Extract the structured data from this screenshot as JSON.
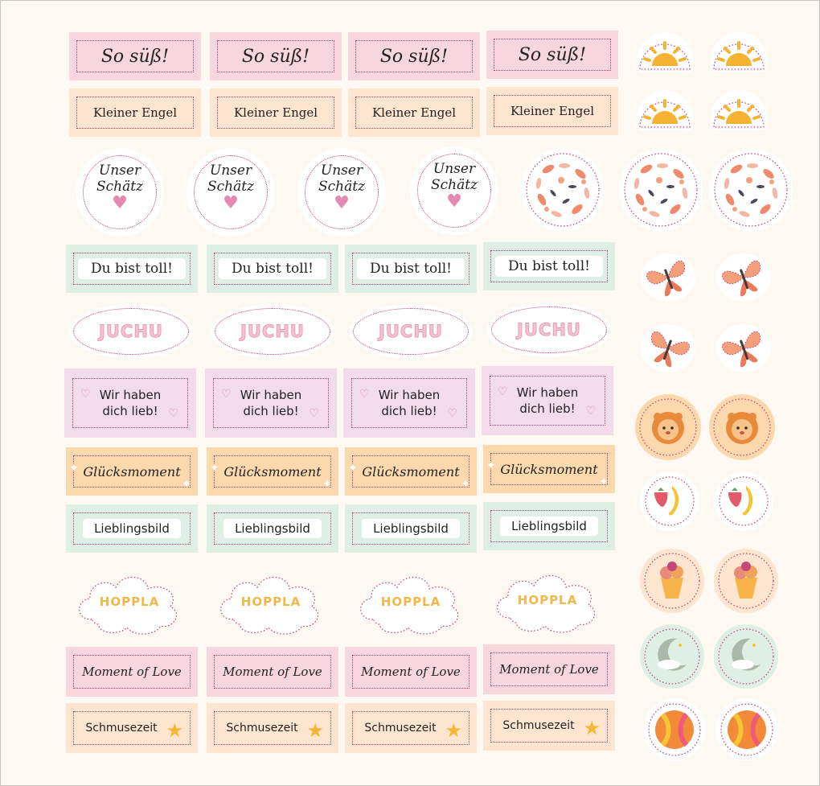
{
  "texts": {
    "so_suess": "So süß!",
    "kleiner_engel": "Kleiner Engel",
    "unser_schatz_1": "Unser",
    "unser_schatz_2": "Schätz",
    "du_bist_toll": "Du bist toll!",
    "juchu": "JUCHU",
    "wir_haben_1": "Wir haben",
    "wir_haben_2": "dich lieb!",
    "gluecksmoment": "Glücksmoment",
    "lieblingsbild": "Lieblingsbild",
    "hoppla": "HOPPLA",
    "moment_of_love": "Moment of Love",
    "schmusezeit": "Schmusezeit"
  },
  "colors": {
    "pink": "#f7d6de",
    "peach": "#fde5cf",
    "mint": "#deefe6",
    "lavender": "#f2dcea",
    "orange": "#fbd9ad",
    "dotted_border": "#c23a78"
  },
  "icons": [
    "sun-icon",
    "floral-wreath-icon",
    "butterfly-icon",
    "lion-icon",
    "fruit-icon",
    "ice-cream-icon",
    "moon-icon",
    "ball-icon",
    "heart-icon",
    "star-icon"
  ]
}
